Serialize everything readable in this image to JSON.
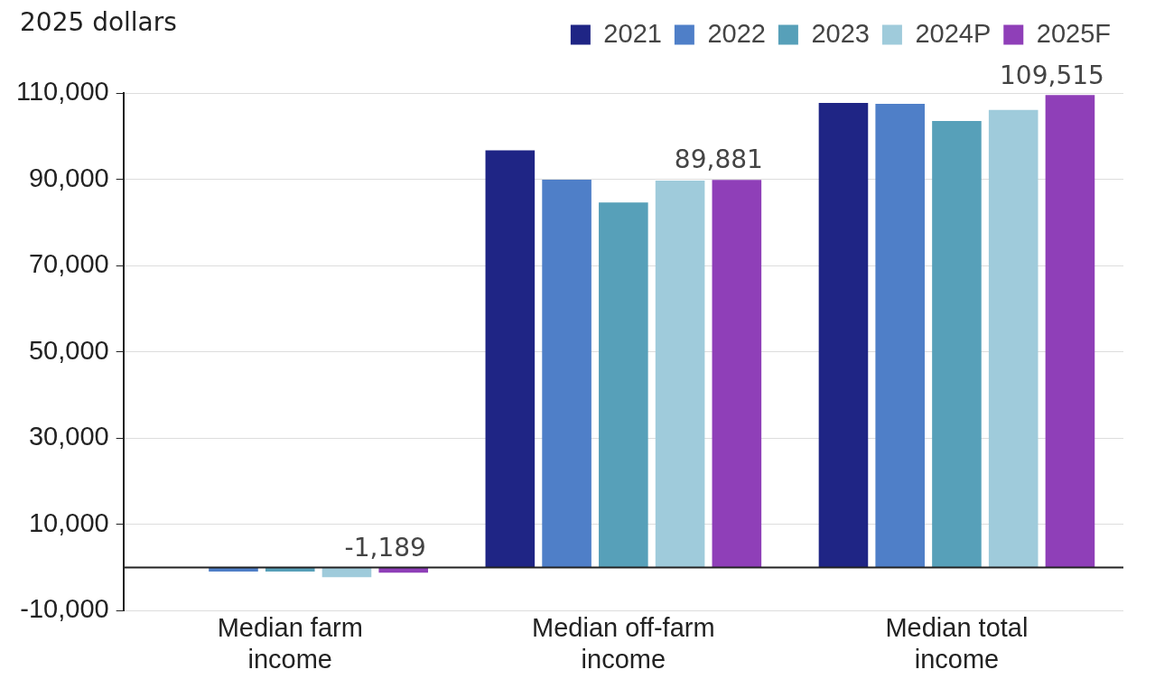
{
  "chart_data": {
    "type": "bar",
    "ylabel": "2025 dollars",
    "categories": [
      "Median farm income",
      "Median off-farm income",
      "Median total income"
    ],
    "series": [
      {
        "name": "2021",
        "color": "#1f2585",
        "values": [
          0,
          96700,
          107700
        ]
      },
      {
        "name": "2022",
        "color": "#4f7fc8",
        "values": [
          -900,
          89900,
          107500
        ]
      },
      {
        "name": "2023",
        "color": "#57a0b9",
        "values": [
          -900,
          84600,
          103500
        ]
      },
      {
        "name": "2024P",
        "color": "#9fcbdb",
        "values": [
          -2200,
          89700,
          106100
        ]
      },
      {
        "name": "2025F",
        "color": "#8f3fb8",
        "values": [
          -1189,
          89881,
          109515
        ],
        "value_labels": [
          "-1,189",
          "89,881",
          "109,515"
        ]
      }
    ],
    "ylim": [
      -10000,
      110000
    ],
    "yticks": [
      {
        "value": -10000,
        "label": "-10,000"
      },
      {
        "value": 10000,
        "label": "10,000"
      },
      {
        "value": 30000,
        "label": "30,000"
      },
      {
        "value": 50000,
        "label": "50,000"
      },
      {
        "value": 70000,
        "label": "70,000"
      },
      {
        "value": 90000,
        "label": "90,000"
      },
      {
        "value": 110000,
        "label": "110,000"
      }
    ],
    "grid": "y",
    "legend": "top"
  }
}
